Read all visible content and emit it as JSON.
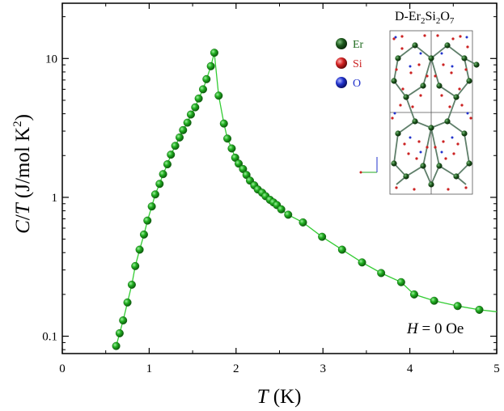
{
  "chart_data": {
    "type": "scatter",
    "title": "",
    "xlabel": {
      "italic": "T",
      "rest": " (K)"
    },
    "ylabel": {
      "italic1": "C",
      "mid": "/",
      "italic2": "T",
      "rest": " (J/mol K",
      "sup": "2",
      "end": ")"
    },
    "xlim": [
      0,
      5
    ],
    "ylim": [
      0.075,
      25
    ],
    "yscale": "log",
    "x_ticks": [
      0,
      1,
      2,
      3,
      4,
      5
    ],
    "x_tick_labels": [
      "0",
      "1",
      "2",
      "3",
      "4",
      "5"
    ],
    "y_ticks": [
      0.1,
      1,
      10
    ],
    "y_tick_labels": [
      "0.1",
      "1",
      "10"
    ],
    "series": [
      {
        "name": "C/T",
        "color": "#1ca81c",
        "line_color": "#33cc33",
        "x": [
          0.62,
          0.66,
          0.7,
          0.75,
          0.8,
          0.84,
          0.89,
          0.94,
          0.98,
          1.03,
          1.07,
          1.12,
          1.16,
          1.21,
          1.25,
          1.3,
          1.35,
          1.39,
          1.44,
          1.48,
          1.53,
          1.57,
          1.62,
          1.66,
          1.71,
          1.75,
          1.8,
          1.86,
          1.9,
          1.95,
          1.99,
          2.03,
          2.08,
          2.12,
          2.16,
          2.21,
          2.25,
          2.3,
          2.34,
          2.39,
          2.43,
          2.47,
          2.52,
          2.6,
          2.77,
          2.99,
          3.22,
          3.45,
          3.67,
          3.9,
          4.05,
          4.28,
          4.55,
          4.8
        ],
        "y": [
          0.085,
          0.105,
          0.13,
          0.175,
          0.235,
          0.32,
          0.42,
          0.54,
          0.68,
          0.86,
          1.05,
          1.25,
          1.47,
          1.73,
          2.03,
          2.35,
          2.7,
          3.05,
          3.45,
          3.95,
          4.45,
          5.15,
          6.0,
          7.1,
          8.8,
          11.0,
          5.4,
          3.4,
          2.65,
          2.25,
          1.93,
          1.75,
          1.6,
          1.45,
          1.32,
          1.22,
          1.14,
          1.08,
          1.02,
          0.96,
          0.92,
          0.88,
          0.82,
          0.75,
          0.66,
          0.52,
          0.42,
          0.34,
          0.285,
          0.245,
          0.2,
          0.18,
          0.165,
          0.155
        ]
      }
    ],
    "annotation": {
      "italic": "H",
      "rest": " = 0 Oe"
    },
    "inset": {
      "title_main": "D-Er",
      "title_sub1": "2",
      "title_mid": "Si",
      "title_sub2": "2",
      "title_end": "O",
      "title_sub3": "7",
      "legend": [
        {
          "label": "Er",
          "color": "#1e5a1e",
          "text_color": "#1e6b1e"
        },
        {
          "label": "Si",
          "color": "#cc2222",
          "text_color": "#cc2222"
        },
        {
          "label": "O",
          "color": "#2233cc",
          "text_color": "#2233cc"
        }
      ]
    }
  }
}
